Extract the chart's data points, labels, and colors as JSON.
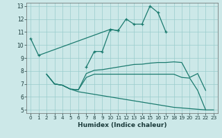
{
  "xlabel": "Humidex (Indice chaleur)",
  "bg_color": "#cce8e8",
  "grid_color": "#99cccc",
  "line_color": "#1a7a6e",
  "xlim": [
    -0.5,
    23.5
  ],
  "ylim": [
    4.75,
    13.25
  ],
  "xticks": [
    0,
    1,
    2,
    3,
    4,
    5,
    6,
    7,
    8,
    9,
    10,
    11,
    12,
    13,
    14,
    15,
    16,
    17,
    18,
    19,
    20,
    21,
    22,
    23
  ],
  "yticks": [
    5,
    6,
    7,
    8,
    9,
    10,
    11,
    12,
    13
  ],
  "line1_x": [
    0,
    1,
    10,
    11,
    12,
    13,
    14,
    15,
    16,
    17
  ],
  "line1_y": [
    10.5,
    9.2,
    11.2,
    11.1,
    12.0,
    11.6,
    11.6,
    13.0,
    12.5,
    11.0
  ],
  "line2_x": [
    7,
    8,
    9,
    10,
    11
  ],
  "line2_y": [
    8.3,
    9.5,
    9.5,
    11.2,
    11.1
  ],
  "line3_x": [
    2,
    3,
    4,
    5,
    6,
    7,
    8,
    9,
    10,
    11,
    12,
    13,
    14,
    15,
    16,
    17,
    18,
    19,
    20,
    21,
    22
  ],
  "line3_y": [
    7.75,
    7.0,
    6.9,
    6.6,
    6.55,
    7.8,
    8.05,
    8.1,
    8.2,
    8.3,
    8.4,
    8.5,
    8.52,
    8.6,
    8.65,
    8.65,
    8.7,
    8.65,
    7.5,
    7.8,
    6.5
  ],
  "line4_x": [
    2,
    3,
    4,
    5,
    6,
    7,
    8,
    9,
    10,
    11,
    12,
    13,
    14,
    15,
    16,
    17,
    18,
    19,
    20,
    21,
    22
  ],
  "line4_y": [
    7.75,
    7.0,
    6.9,
    6.6,
    6.55,
    7.5,
    7.75,
    7.75,
    7.75,
    7.75,
    7.75,
    7.75,
    7.75,
    7.75,
    7.75,
    7.75,
    7.75,
    7.5,
    7.45,
    6.5,
    5.0
  ],
  "line5_x": [
    2,
    3,
    4,
    5,
    6,
    7,
    8,
    9,
    10,
    11,
    12,
    13,
    14,
    15,
    16,
    17,
    18,
    19,
    20,
    21,
    22,
    23
  ],
  "line5_y": [
    7.75,
    7.0,
    6.9,
    6.6,
    6.4,
    6.3,
    6.2,
    6.1,
    6.0,
    5.9,
    5.8,
    5.7,
    5.6,
    5.5,
    5.4,
    5.3,
    5.2,
    5.15,
    5.1,
    5.05,
    5.0,
    5.0
  ]
}
